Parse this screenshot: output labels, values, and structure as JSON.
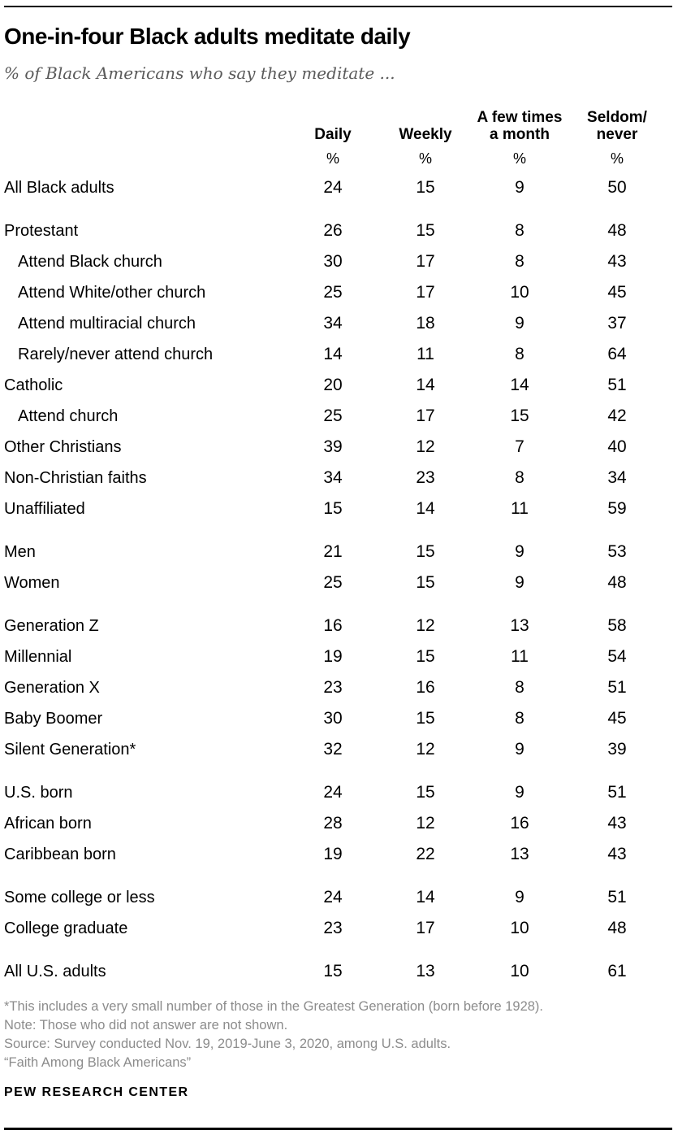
{
  "chart_data": {
    "type": "table",
    "title": "One-in-four Black adults meditate daily",
    "subtitle": "% of Black Americans who say they meditate ...",
    "columns": [
      "Daily",
      "Weekly",
      "A few times\na month",
      "Seldom/\nnever"
    ],
    "unit": "%",
    "groups": [
      {
        "rows": [
          {
            "label": "All Black adults",
            "indent": false,
            "values": [
              24,
              15,
              9,
              50
            ]
          }
        ]
      },
      {
        "rows": [
          {
            "label": "Protestant",
            "indent": false,
            "values": [
              26,
              15,
              8,
              48
            ]
          },
          {
            "label": "Attend Black church",
            "indent": true,
            "values": [
              30,
              17,
              8,
              43
            ]
          },
          {
            "label": "Attend White/other church",
            "indent": true,
            "values": [
              25,
              17,
              10,
              45
            ]
          },
          {
            "label": "Attend multiracial church",
            "indent": true,
            "values": [
              34,
              18,
              9,
              37
            ]
          },
          {
            "label": "Rarely/never attend church",
            "indent": true,
            "values": [
              14,
              11,
              8,
              64
            ]
          },
          {
            "label": "Catholic",
            "indent": false,
            "values": [
              20,
              14,
              14,
              51
            ]
          },
          {
            "label": "Attend church",
            "indent": true,
            "values": [
              25,
              17,
              15,
              42
            ]
          },
          {
            "label": "Other Christians",
            "indent": false,
            "values": [
              39,
              12,
              7,
              40
            ]
          },
          {
            "label": "Non-Christian faiths",
            "indent": false,
            "values": [
              34,
              23,
              8,
              34
            ]
          },
          {
            "label": "Unaffiliated",
            "indent": false,
            "values": [
              15,
              14,
              11,
              59
            ]
          }
        ]
      },
      {
        "rows": [
          {
            "label": "Men",
            "indent": false,
            "values": [
              21,
              15,
              9,
              53
            ]
          },
          {
            "label": "Women",
            "indent": false,
            "values": [
              25,
              15,
              9,
              48
            ]
          }
        ]
      },
      {
        "rows": [
          {
            "label": "Generation Z",
            "indent": false,
            "values": [
              16,
              12,
              13,
              58
            ]
          },
          {
            "label": "Millennial",
            "indent": false,
            "values": [
              19,
              15,
              11,
              54
            ]
          },
          {
            "label": "Generation X",
            "indent": false,
            "values": [
              23,
              16,
              8,
              51
            ]
          },
          {
            "label": "Baby Boomer",
            "indent": false,
            "values": [
              30,
              15,
              8,
              45
            ]
          },
          {
            "label": "Silent Generation*",
            "indent": false,
            "values": [
              32,
              12,
              9,
              39
            ]
          }
        ]
      },
      {
        "rows": [
          {
            "label": "U.S. born",
            "indent": false,
            "values": [
              24,
              15,
              9,
              51
            ]
          },
          {
            "label": "African born",
            "indent": false,
            "values": [
              28,
              12,
              16,
              43
            ]
          },
          {
            "label": "Caribbean born",
            "indent": false,
            "values": [
              19,
              22,
              13,
              43
            ]
          }
        ]
      },
      {
        "rows": [
          {
            "label": "Some college or less",
            "indent": false,
            "values": [
              24,
              14,
              9,
              51
            ]
          },
          {
            "label": "College graduate",
            "indent": false,
            "values": [
              23,
              17,
              10,
              48
            ]
          }
        ]
      },
      {
        "rows": [
          {
            "label": "All U.S. adults",
            "indent": false,
            "values": [
              15,
              13,
              10,
              61
            ]
          }
        ]
      }
    ]
  },
  "footer": {
    "notes": [
      "*This includes a very small number of those in the Greatest Generation (born before 1928).",
      "Note: Those who did not answer are not shown.",
      "Source: Survey conducted Nov. 19, 2019-June 3, 2020, among U.S. adults.",
      "“Faith Among Black Americans”"
    ],
    "brand": "PEW RESEARCH CENTER"
  },
  "colors": {
    "text": "#000000",
    "subtitle_gray": "#5a5a5a",
    "note_gray": "#8c8c8c",
    "rule": "#000000",
    "background": "#ffffff"
  }
}
